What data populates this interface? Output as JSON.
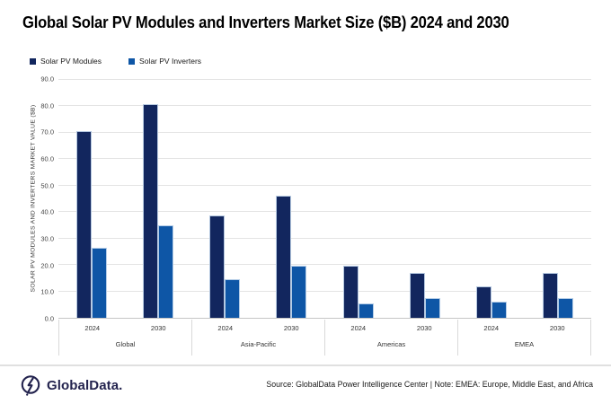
{
  "title": "Global Solar PV Modules and Inverters Market Size ($B) 2024 and 2030",
  "chart_data": {
    "type": "bar",
    "title": "Global Solar PV Modules and Inverters Market Size ($B) 2024 and 2030",
    "ylabel": "SOLAR PV MODULES AND INVERTERS MARKET VALUE ($B)",
    "xlabel": "",
    "ylim": [
      0,
      90
    ],
    "ytick_step": 10,
    "grid": true,
    "legend_position": "top-left",
    "x_groups": [
      "Global",
      "Asia-Pacific",
      "Americas",
      "EMEA"
    ],
    "x_years": [
      "2024",
      "2030"
    ],
    "categories": [
      "Global 2024",
      "Global 2030",
      "Asia-Pacific 2024",
      "Asia-Pacific 2030",
      "Americas 2024",
      "Americas 2030",
      "EMEA 2024",
      "EMEA 2030"
    ],
    "series": [
      {
        "name": "Solar PV Modules",
        "color": "#12265E",
        "values": [
          70.5,
          80.5,
          38.5,
          46.0,
          19.5,
          17.0,
          12.0,
          17.0
        ]
      },
      {
        "name": "Solar PV Inverters",
        "color": "#0E56A6",
        "values": [
          26.5,
          35.0,
          14.5,
          19.5,
          5.5,
          7.5,
          6.0,
          7.5
        ]
      }
    ]
  },
  "footer": {
    "brand": "GlobalData.",
    "source_note": "Source: GlobalData Power Intelligence Center | Note: EMEA: Europe, Middle East, and Africa"
  },
  "colors": {
    "modules": "#12265E",
    "inverters": "#0E56A6",
    "gridline": "#E4E4E4",
    "axis_line": "#C6C6C6",
    "separator": "#D9D9D9",
    "brand_navy": "#23234E"
  }
}
